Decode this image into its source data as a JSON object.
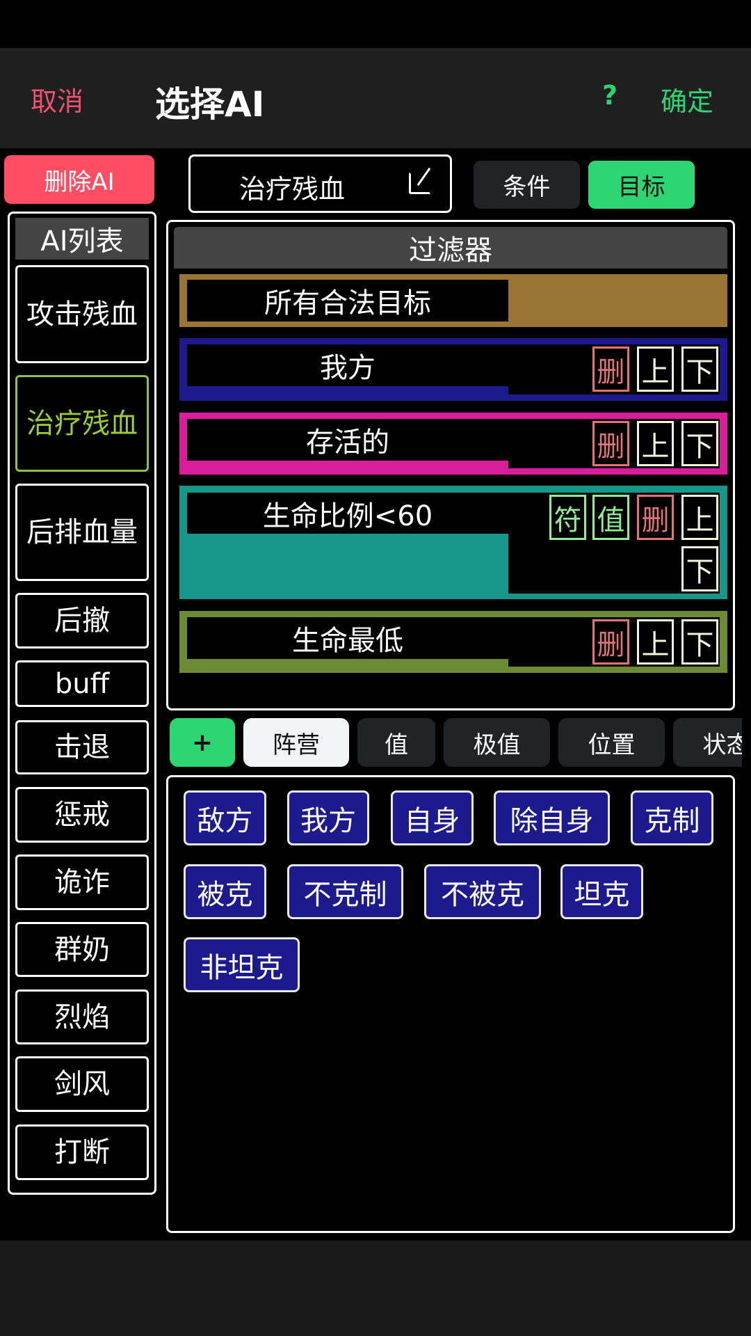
{
  "header": {
    "cancel": "取消",
    "title": "选择AI",
    "help": "?",
    "confirm": "确定"
  },
  "colors": {
    "cancel": "#f0506e",
    "confirm": "#2ed573",
    "delete_ai": "#ff4d63",
    "selected_item": "#9acd32",
    "accent_green": "#2ed573",
    "option_blue": "#1c1a8c"
  },
  "sidebar": {
    "delete_ai": "删除AI",
    "list_title": "AI列表",
    "selected_index": 1,
    "items": [
      "攻击残血",
      "治疗残血",
      "后排血量",
      "后撤",
      "buff",
      "击退",
      "惩戒",
      "诡诈",
      "群奶",
      "烈焰",
      "剑风",
      "打断"
    ]
  },
  "editor": {
    "name": "治疗残血",
    "edit_icon": "edit-icon",
    "tab_condition": "条件",
    "tab_target": "目标",
    "active_tab": "目标"
  },
  "filter": {
    "title": "过滤器",
    "rows": [
      {
        "label": "所有合法目标",
        "color": "#9a7433"
      },
      {
        "label": "我方",
        "color": "#1c1a8c",
        "buttons": [
          "删",
          "上",
          "下"
        ]
      },
      {
        "label": "存活的",
        "color": "#d81e9a",
        "buttons": [
          "删",
          "上",
          "下"
        ]
      },
      {
        "label": "生命比例<60",
        "color": "#17968a",
        "buttons": [
          "符",
          "值",
          "删",
          "上",
          "下"
        ]
      },
      {
        "label": "生命最低",
        "color": "#6b8c34",
        "buttons": [
          "删",
          "上",
          "下"
        ]
      }
    ]
  },
  "categories": {
    "add": "+",
    "tabs": [
      "阵营",
      "值",
      "极值",
      "位置",
      "状态"
    ],
    "active": "阵营"
  },
  "options": [
    "敌方",
    "我方",
    "自身",
    "除自身",
    "克制",
    "被克",
    "不克制",
    "不被克",
    "坦克",
    "非坦克"
  ]
}
